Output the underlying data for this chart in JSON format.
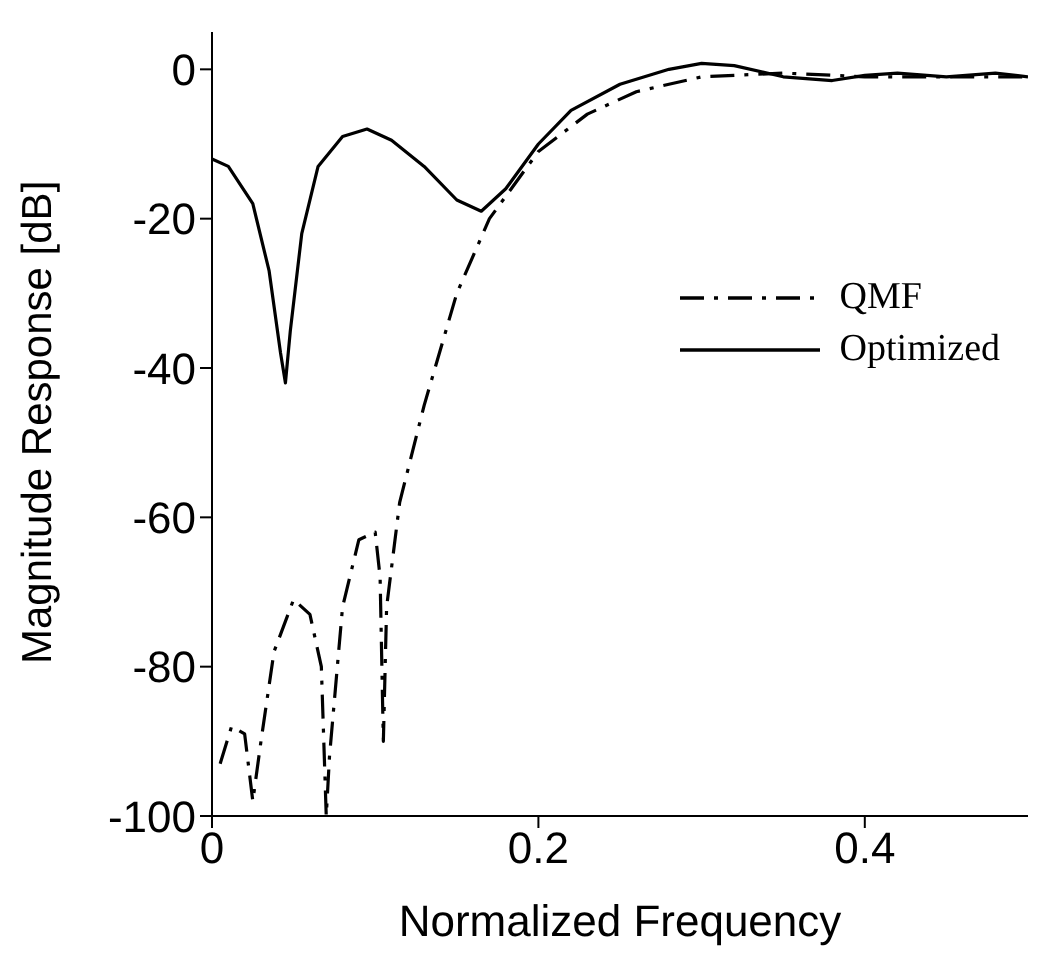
{
  "chart_data": {
    "type": "line",
    "xlabel": "Normalized Frequency",
    "ylabel": "Magnitude Response [dB]",
    "xlim": [
      0,
      0.5
    ],
    "xticks": [
      0,
      0.2,
      0.4
    ],
    "ylim": [
      -100,
      5
    ],
    "yticks": [
      -100,
      -80,
      -60,
      -40,
      -20,
      0
    ],
    "grid": false,
    "legend": "right",
    "marker": "none",
    "series": [
      {
        "name": "QMF",
        "color": "#000000",
        "line_style": "dashed",
        "x": [
          0.005,
          0.012,
          0.02,
          0.025,
          0.03,
          0.038,
          0.05,
          0.06,
          0.067,
          0.07,
          0.072,
          0.08,
          0.09,
          0.1,
          0.103,
          0.105,
          0.107,
          0.115,
          0.13,
          0.15,
          0.17,
          0.2,
          0.23,
          0.26,
          0.3,
          0.35,
          0.4,
          0.45,
          0.5
        ],
        "values": [
          -93,
          -88,
          -89,
          -98,
          -90,
          -78,
          -71,
          -73,
          -80,
          -100,
          -92,
          -72,
          -63,
          -62,
          -68,
          -90,
          -72,
          -58,
          -45,
          -30,
          -20,
          -11,
          -6,
          -3,
          -1,
          -0.5,
          -1,
          -1,
          -1
        ]
      },
      {
        "name": "Optimized",
        "color": "#000000",
        "line_style": "solid",
        "x": [
          0,
          0.01,
          0.025,
          0.035,
          0.042,
          0.045,
          0.048,
          0.055,
          0.065,
          0.08,
          0.095,
          0.11,
          0.13,
          0.15,
          0.165,
          0.18,
          0.2,
          0.22,
          0.25,
          0.28,
          0.3,
          0.32,
          0.35,
          0.38,
          0.4,
          0.42,
          0.45,
          0.48,
          0.5
        ],
        "values": [
          -12,
          -13,
          -18,
          -27,
          -38,
          -42,
          -35,
          -22,
          -13,
          -9,
          -8,
          -9.5,
          -13,
          -17.5,
          -19,
          -16,
          -10,
          -5.5,
          -2,
          0,
          0.8,
          0.5,
          -1,
          -1.5,
          -0.8,
          -0.5,
          -1,
          -0.5,
          -1
        ]
      }
    ]
  }
}
